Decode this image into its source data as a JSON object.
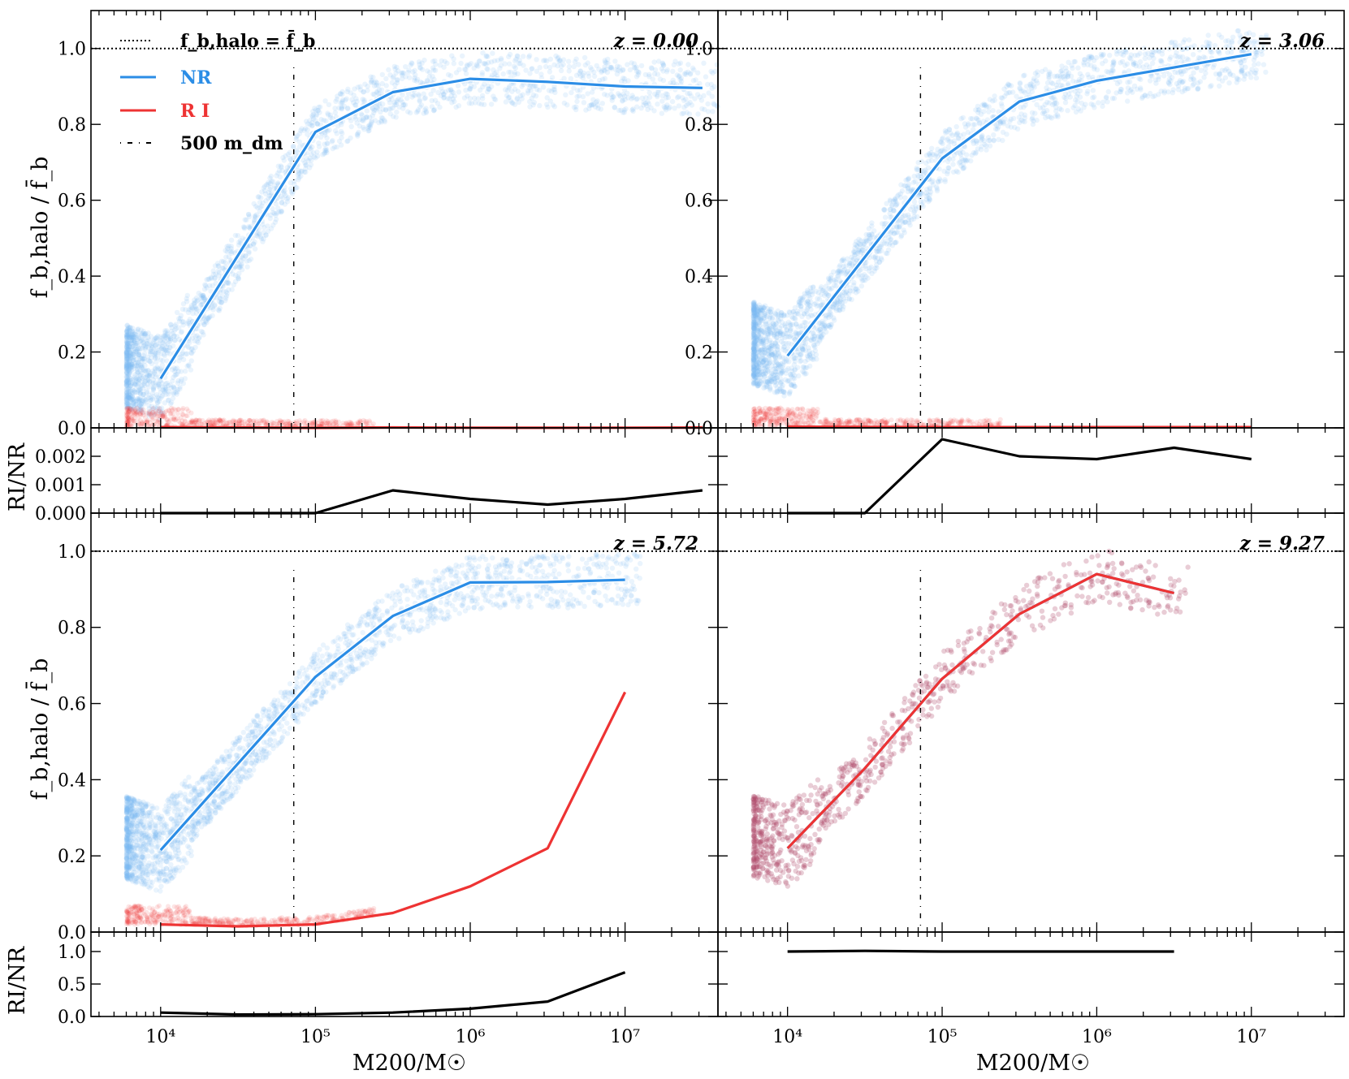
{
  "colors": {
    "nr": "#2b8de6",
    "ri": "#ee3333",
    "ratio": "#000000",
    "scatter_nr": "#7fb8f0",
    "scatter_ri": "#b04a6a"
  },
  "legend": {
    "fbar": "f_b,halo = f̄_b",
    "nr": "NR",
    "ri": "R I",
    "mdm": "500 m_dm"
  },
  "chart_data": {
    "type": "line",
    "x_axis": {
      "label": "M200/M☉",
      "scale": "log",
      "xlim_log10": [
        3.55,
        7.6
      ],
      "tick_log10": [
        4,
        5,
        6,
        7
      ],
      "tick_labels": [
        "10⁴",
        "10⁵",
        "10⁶",
        "10⁷"
      ]
    },
    "top_ylabel": "f_b,halo / f̄_b",
    "ratio_ylabel": "RI/NR",
    "reference_line_y": 1.0,
    "resolution_mass_log10": 4.86,
    "panels": [
      {
        "z_label": "z = 0.00",
        "ylim": [
          0,
          1.1
        ],
        "yticks": [
          0.0,
          0.2,
          0.4,
          0.6,
          0.8,
          1.0
        ],
        "ytick_labels": [
          "0.0",
          "0.2",
          "0.4",
          "0.6",
          "0.8",
          "1.0"
        ],
        "series": [
          {
            "name": "NR",
            "color": "#2b8de6",
            "x_log10": [
              4.0,
              5.0,
              5.5,
              6.0,
              6.5,
              7.0,
              7.5
            ],
            "y": [
              0.13,
              0.78,
              0.885,
              0.92,
              0.912,
              0.9,
              0.896
            ]
          },
          {
            "name": "RI",
            "color": "#ee3333",
            "x_log10": [
              4.0,
              5.0,
              5.5,
              6.0,
              6.5,
              7.0,
              7.5
            ],
            "y": [
              0.002,
              0.0,
              0.001,
              0.0005,
              0.0003,
              0.0005,
              0.0008
            ]
          }
        ],
        "ratio": {
          "ylim": [
            0.0,
            0.003
          ],
          "yticks": [
            0.0,
            0.001,
            0.002
          ],
          "ytick_labels": [
            "0.000",
            "0.001",
            "0.002"
          ],
          "x_log10": [
            4.0,
            4.5,
            5.0,
            5.5,
            6.0,
            6.5,
            7.0,
            7.5
          ],
          "y": [
            0.0,
            0.0,
            0.0,
            0.0008,
            0.0005,
            0.0003,
            0.0005,
            0.0008
          ]
        }
      },
      {
        "z_label": "z = 3.06",
        "ylim": [
          0,
          1.1
        ],
        "yticks": [
          0.0,
          0.2,
          0.4,
          0.6,
          0.8,
          1.0
        ],
        "ytick_labels": [
          "0.0",
          "0.2",
          "0.4",
          "0.6",
          "0.8",
          "1.0"
        ],
        "series": [
          {
            "name": "NR",
            "color": "#2b8de6",
            "x_log10": [
              4.0,
              5.0,
              5.5,
              6.0,
              6.5,
              7.0
            ],
            "y": [
              0.19,
              0.71,
              0.86,
              0.915,
              0.95,
              0.985
            ]
          },
          {
            "name": "RI",
            "color": "#ee3333",
            "x_log10": [
              4.0,
              5.0,
              5.5,
              6.0,
              6.5,
              7.0
            ],
            "y": [
              0.003,
              0.002,
              0.002,
              0.002,
              0.002,
              0.002
            ]
          }
        ],
        "ratio": {
          "ylim": [
            0.0,
            0.003
          ],
          "yticks": [
            0.0,
            0.001,
            0.002
          ],
          "ytick_labels": [
            "",
            "",
            ""
          ],
          "x_log10": [
            4.0,
            4.5,
            5.0,
            5.5,
            6.0,
            6.5,
            7.0
          ],
          "y": [
            0.0,
            0.0,
            0.0026,
            0.002,
            0.0019,
            0.0023,
            0.0019
          ]
        }
      },
      {
        "z_label": "z = 5.72",
        "ylim": [
          0,
          1.1
        ],
        "yticks": [
          0.0,
          0.2,
          0.4,
          0.6,
          0.8,
          1.0
        ],
        "ytick_labels": [
          "0.0",
          "0.2",
          "0.4",
          "0.6",
          "0.8",
          "1.0"
        ],
        "series": [
          {
            "name": "NR",
            "color": "#2b8de6",
            "x_log10": [
              4.0,
              5.0,
              5.5,
              6.0,
              6.5,
              7.0
            ],
            "y": [
              0.215,
              0.67,
              0.83,
              0.918,
              0.919,
              0.925
            ]
          },
          {
            "name": "RI",
            "color": "#ee3333",
            "x_log10": [
              4.0,
              4.5,
              5.0,
              5.5,
              6.0,
              6.5,
              7.0
            ],
            "y": [
              0.02,
              0.015,
              0.02,
              0.05,
              0.12,
              0.22,
              0.63
            ]
          }
        ],
        "ratio": {
          "ylim": [
            0.0,
            1.3
          ],
          "yticks": [
            0.0,
            0.5,
            1.0
          ],
          "ytick_labels": [
            "0.0",
            "0.5",
            "1.0"
          ],
          "x_log10": [
            4.0,
            4.5,
            5.0,
            5.5,
            6.0,
            6.5,
            7.0
          ],
          "y": [
            0.06,
            0.03,
            0.035,
            0.06,
            0.12,
            0.23,
            0.68
          ]
        }
      },
      {
        "z_label": "z = 9.27",
        "ylim": [
          0,
          1.1
        ],
        "yticks": [
          0.0,
          0.2,
          0.4,
          0.6,
          0.8,
          1.0
        ],
        "ytick_labels": [
          "",
          "",
          "",
          "",
          "",
          ""
        ],
        "series": [
          {
            "name": "NR",
            "color": "#2b8de6",
            "x_log10": [
              4.0,
              4.5,
              5.0,
              5.5,
              6.0,
              6.5
            ],
            "y": [
              0.22,
              0.43,
              0.665,
              0.835,
              0.94,
              0.89
            ]
          },
          {
            "name": "RI",
            "color": "#ee3333",
            "x_log10": [
              4.0,
              4.5,
              5.0,
              5.5,
              6.0,
              6.5
            ],
            "y": [
              0.22,
              0.43,
              0.665,
              0.835,
              0.94,
              0.89
            ]
          }
        ],
        "ratio": {
          "ylim": [
            0.0,
            1.3
          ],
          "yticks": [
            0.0,
            0.5,
            1.0
          ],
          "ytick_labels": [
            "",
            "",
            ""
          ],
          "x_log10": [
            4.0,
            4.5,
            5.0,
            5.5,
            6.0,
            6.5
          ],
          "y": [
            1.0,
            1.01,
            1.0,
            1.0,
            1.0,
            1.0
          ]
        }
      }
    ]
  }
}
